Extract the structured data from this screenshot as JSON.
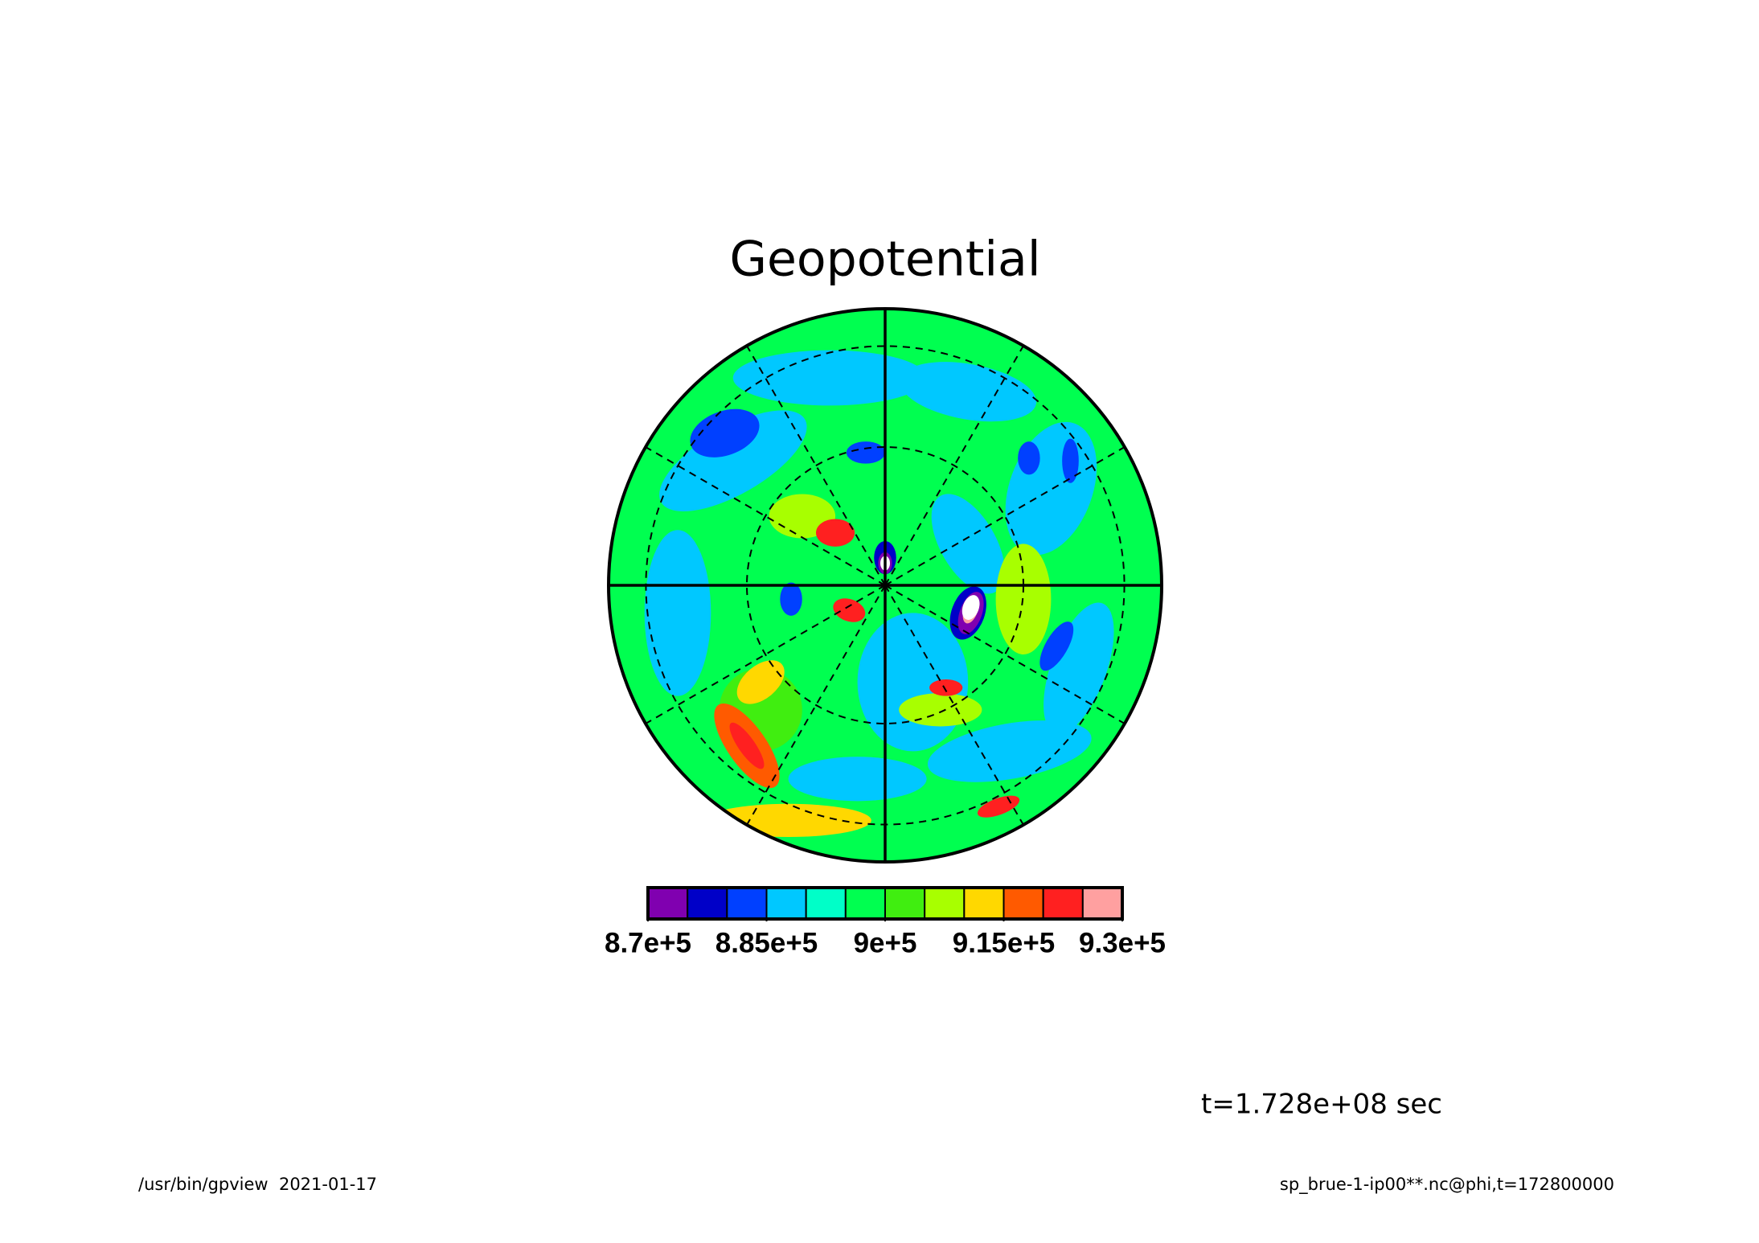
{
  "chart_data": {
    "type": "contour",
    "title": "Geopotential",
    "projection": "polar",
    "levels": [
      870000,
      875000,
      880000,
      885000,
      890000,
      895000,
      900000,
      905000,
      910000,
      915000,
      920000,
      925000,
      930000
    ],
    "colors": [
      "#8000b0",
      "#0000c8",
      "#0040ff",
      "#00c8ff",
      "#00ffc8",
      "#00ff50",
      "#40ee10",
      "#a8ff00",
      "#ffd800",
      "#ff5a00",
      "#ff2020",
      "#ffa0a0"
    ],
    "colorbar_ticks": [
      {
        "value": 870000,
        "label": "8.7e+5"
      },
      {
        "value": 885000,
        "label": "8.85e+5"
      },
      {
        "value": 900000,
        "label": "9e+5"
      },
      {
        "value": 915000,
        "label": "9.15e+5"
      },
      {
        "value": 930000,
        "label": "9.3e+5"
      }
    ],
    "annotation": "t=1.728e+08 sec",
    "footer_left": "/usr/bin/gpview  2021-01-17",
    "footer_right": "sp_brue-1-ip00**.nc@phi,t=172800000"
  }
}
